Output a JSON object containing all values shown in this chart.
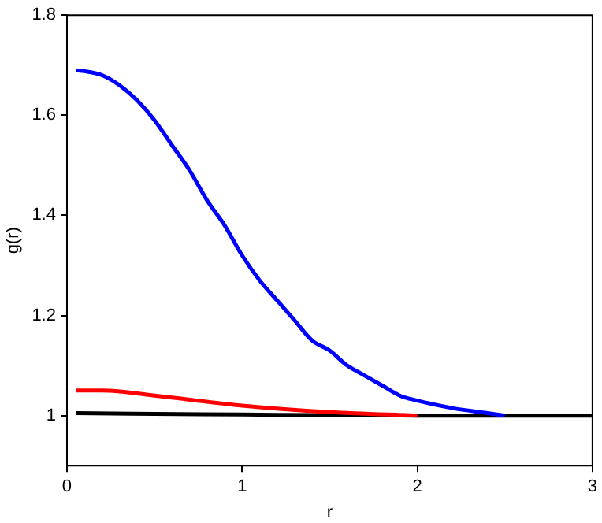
{
  "chart_data": {
    "type": "line",
    "xlabel": "r",
    "ylabel": "g(r)",
    "xlim": [
      0,
      3
    ],
    "xticks": [
      0,
      1,
      2,
      3
    ],
    "ylim": [
      0.9,
      1.8
    ],
    "yticks": [
      1,
      1.2,
      1.4,
      1.6,
      1.8
    ],
    "grid": false,
    "legend": false,
    "marker": "none",
    "line_style": "solid",
    "series": [
      {
        "color": "#0000ff",
        "x": [
          0.05,
          0.1,
          0.2,
          0.3,
          0.4,
          0.5,
          0.6,
          0.7,
          0.8,
          0.9,
          1.0,
          1.1,
          1.2,
          1.3,
          1.4,
          1.5,
          1.6,
          1.7,
          1.8,
          1.9,
          2.0,
          2.2,
          2.4,
          2.5
        ],
        "values": [
          1.69,
          1.688,
          1.68,
          1.66,
          1.63,
          1.59,
          1.54,
          1.49,
          1.43,
          1.38,
          1.32,
          1.27,
          1.23,
          1.19,
          1.15,
          1.13,
          1.1,
          1.08,
          1.06,
          1.04,
          1.03,
          1.015,
          1.005,
          1.0
        ]
      },
      {
        "color": "#ff0000",
        "x": [
          0.05,
          0.2,
          0.5,
          1.0,
          1.5,
          2.0
        ],
        "values": [
          1.05,
          1.05,
          1.04,
          1.02,
          1.007,
          1.0
        ]
      },
      {
        "color": "#000000",
        "x": [
          0.05,
          1.0,
          2.0,
          3.0
        ],
        "values": [
          1.005,
          1.002,
          1.0,
          1.0
        ]
      }
    ]
  }
}
